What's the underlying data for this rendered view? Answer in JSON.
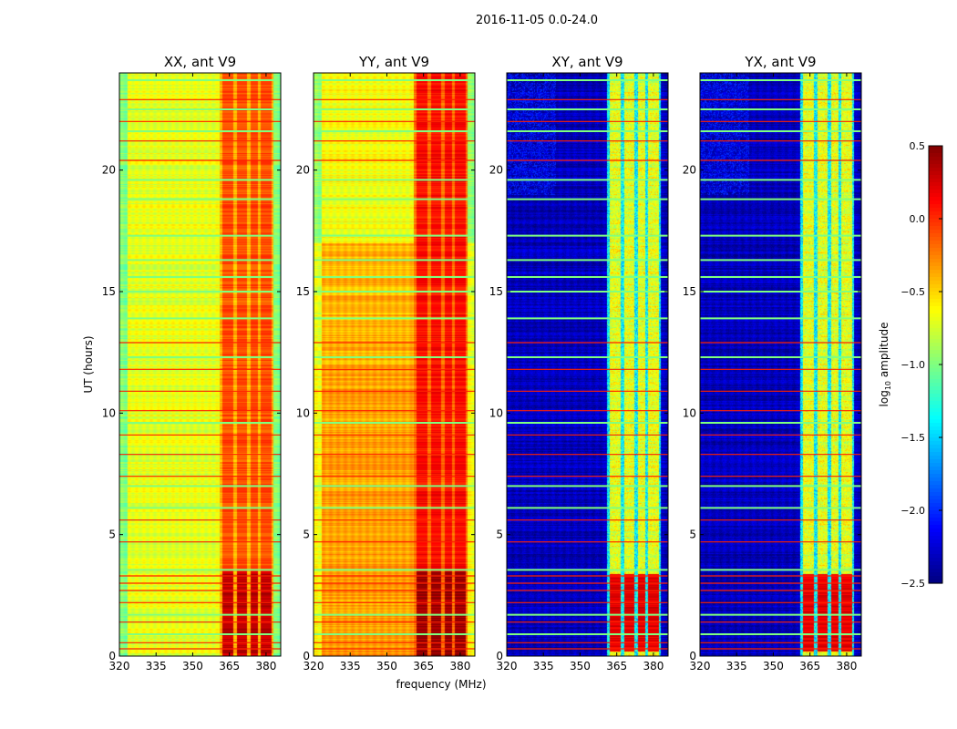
{
  "chart_data": {
    "type": "heatmap",
    "suptitle": "2016-11-05 0.0-24.0",
    "xlabel": "frequency (MHz)",
    "ylabel": "UT (hours)",
    "xlim": [
      320,
      386
    ],
    "ylim": [
      0,
      24
    ],
    "xticks": [
      320,
      335,
      350,
      365,
      380
    ],
    "yticks": [
      0,
      5,
      10,
      15,
      20
    ],
    "colorbar": {
      "label": "log10 amplitude",
      "label_main": "log",
      "label_sub": "10",
      "label_rest": " amplitude",
      "range": [
        -2.5,
        0.5
      ],
      "ticks": [
        0.5,
        0.0,
        -0.5,
        -1.0,
        -1.5,
        -2.0,
        -2.5
      ],
      "tick_labels": [
        "0.5",
        "0.0",
        "−0.5",
        "−1.0",
        "−1.5",
        "−2.0",
        "−2.5"
      ],
      "colormap": "jet"
    },
    "panels": [
      {
        "title": "XX, ant V9",
        "background_level": -0.7,
        "band_level": -0.2,
        "low_time_band_level": 0.3
      },
      {
        "title": "YY, ant V9",
        "background_level": -0.4,
        "band_level": 0.0,
        "low_time_band_level": 0.4
      },
      {
        "title": "XY, ant V9",
        "background_level": -2.4,
        "band_level": -0.7,
        "low_time_band_level": 0.2
      },
      {
        "title": "YX, ant V9",
        "background_level": -2.4,
        "band_level": -0.7,
        "low_time_band_level": 0.2
      }
    ],
    "band_channels_mhz": [
      [
        362,
        366.5
      ],
      [
        368,
        372
      ],
      [
        373.5,
        376.5
      ],
      [
        377.7,
        382
      ]
    ],
    "flagged_rows_red_hours": [
      0.3,
      0.55,
      1.4,
      2.2,
      2.7,
      3.0,
      3.3,
      4.7,
      5.6,
      7.4,
      8.3,
      9.1,
      10.1,
      10.9,
      11.8,
      12.9,
      20.4,
      21.2,
      22.0,
      22.9
    ],
    "flagged_rows_green_hours": [
      0.9,
      1.7,
      3.55,
      6.1,
      7.0,
      9.6,
      12.3,
      13.9,
      15.0,
      15.6,
      16.3,
      17.3,
      18.8,
      19.6,
      21.6,
      22.5,
      23.7
    ]
  }
}
